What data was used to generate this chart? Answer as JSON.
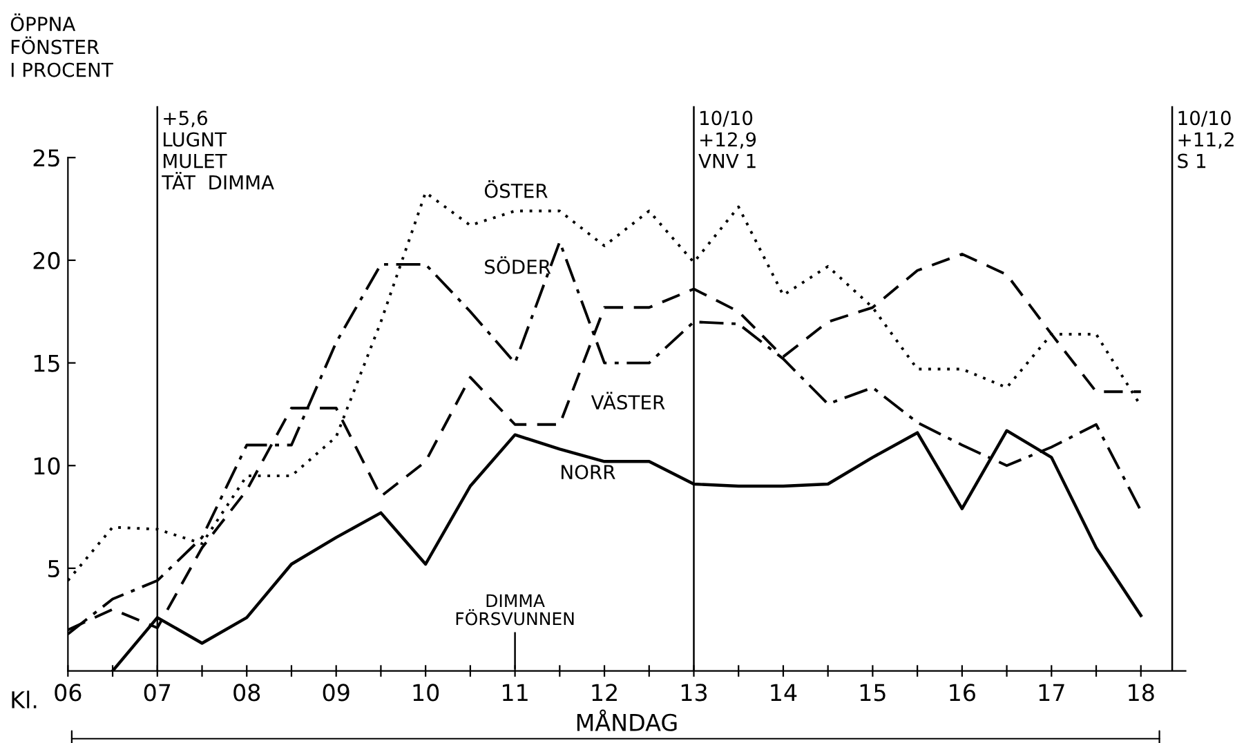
{
  "chart_data": {
    "type": "line",
    "ylabel": "ÖPPNA\nFÖNSTER\nI PROCENT",
    "xlabel": "MÅNDAG",
    "x": [
      6,
      6.5,
      7,
      7.5,
      8,
      8.5,
      9,
      9.5,
      10,
      10.5,
      11,
      11.5,
      12,
      12.5,
      13,
      13.5,
      14,
      14.5,
      15,
      15.5,
      16,
      16.5,
      17,
      17.5,
      18
    ],
    "series": [
      {
        "name": "ÖSTER",
        "color": "#000000",
        "line_style": "dotted",
        "values": [
          4.4,
          7.0,
          6.9,
          6.2,
          9.5,
          9.5,
          11.4,
          17.0,
          23.3,
          21.7,
          22.4,
          22.4,
          20.7,
          22.4,
          19.9,
          22.6,
          18.3,
          19.7,
          17.7,
          14.7,
          14.7,
          13.8,
          16.4,
          16.4,
          12.9
        ]
      },
      {
        "name": "SÖDER",
        "color": "#000000",
        "line_style": "dashdot",
        "values": [
          1.8,
          3.5,
          4.4,
          6.5,
          11.0,
          11.0,
          16.0,
          19.8,
          19.8,
          17.5,
          15.0,
          20.9,
          15.0,
          15.0,
          17.0,
          16.9,
          15.2,
          13.0,
          13.8,
          12.1,
          11.0,
          10.0,
          10.9,
          12.0,
          7.8
        ]
      },
      {
        "name": "VÄSTER",
        "color": "#000000",
        "line_style": "dashed",
        "values": [
          2.0,
          3.0,
          2.1,
          6.0,
          8.8,
          12.8,
          12.8,
          8.5,
          10.2,
          14.3,
          12.0,
          12.0,
          17.7,
          17.7,
          18.6,
          17.5,
          15.3,
          17.0,
          17.7,
          19.5,
          20.3,
          19.3,
          16.4,
          13.6,
          13.6
        ]
      },
      {
        "name": "NORR",
        "color": "#000000",
        "line_style": "solid",
        "values": [
          null,
          0,
          2.6,
          1.35,
          2.6,
          5.2,
          6.5,
          7.7,
          5.2,
          9.0,
          11.5,
          10.8,
          10.2,
          10.2,
          9.1,
          9.0,
          9.0,
          9.1,
          10.4,
          11.6,
          7.9,
          11.7,
          10.4,
          6.0,
          2.7
        ]
      }
    ],
    "xlim": [
      6,
      18.5
    ],
    "ylim": [
      0,
      27.5
    ],
    "xticks": [
      {
        "value": 6,
        "label": "06"
      },
      {
        "value": 6.5,
        "label": null
      },
      {
        "value": 7,
        "label": "07"
      },
      {
        "value": 7.5,
        "label": null
      },
      {
        "value": 8,
        "label": "08"
      },
      {
        "value": 8.5,
        "label": null
      },
      {
        "value": 9,
        "label": "09"
      },
      {
        "value": 9.5,
        "label": null
      },
      {
        "value": 10,
        "label": "10"
      },
      {
        "value": 10.5,
        "label": null
      },
      11,
      {
        "value": 11.5,
        "label": null
      },
      12,
      {
        "value": 12.5,
        "label": null
      },
      13,
      {
        "value": 13.5,
        "label": null
      },
      14,
      {
        "value": 14.5,
        "label": null
      },
      15,
      {
        "value": 15.5,
        "label": null
      },
      16,
      {
        "value": 16.5,
        "label": null
      },
      17,
      {
        "value": 17.5,
        "label": null
      },
      18
    ],
    "yticks": [
      5,
      10,
      15,
      20,
      25
    ],
    "ref_lines": [
      {
        "axis": "x",
        "value": 7,
        "label": "+5,6\nLUGNT\nMULET\nTÄT  DIMMA",
        "color": "#000000"
      },
      {
        "axis": "x",
        "value": 13,
        "label": "10/10\n+12,9\nVNV 1",
        "color": "#000000"
      },
      {
        "axis": "x",
        "value": 18.35,
        "label": "10/10\n+11,2\nS 1",
        "color": "#000000"
      }
    ],
    "annotations": [
      "Kl.",
      "DIMMA\nFÖRSVUNNEN"
    ],
    "grid": false,
    "legend": false
  }
}
